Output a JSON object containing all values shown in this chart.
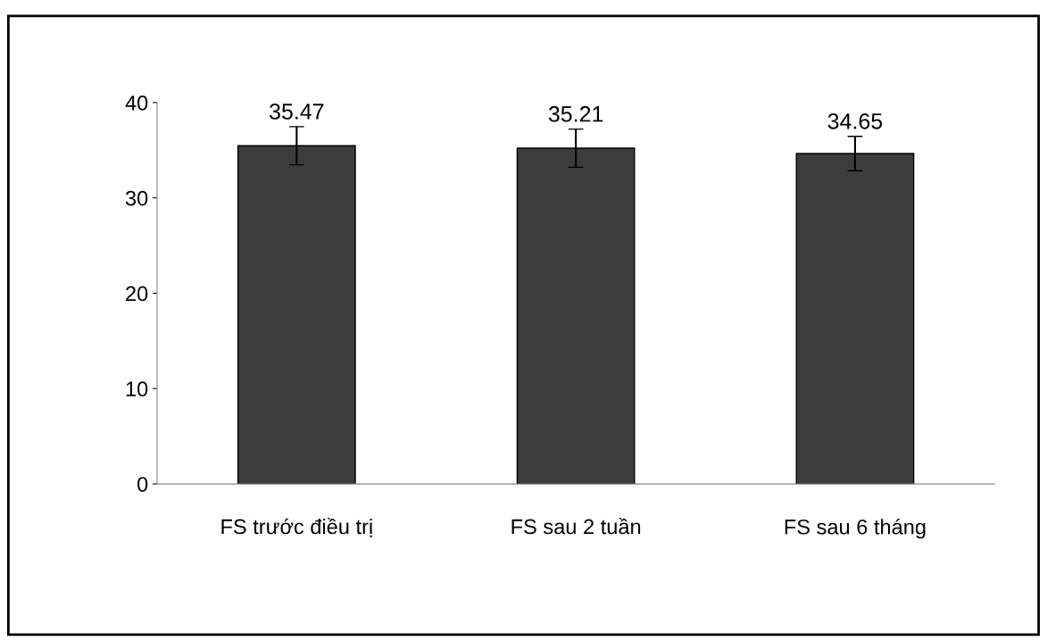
{
  "chart_data": {
    "type": "bar",
    "categories": [
      "FS trước điều trị",
      "FS sau 2 tuần",
      "FS sau 6 tháng"
    ],
    "values": [
      35.47,
      35.21,
      34.65
    ],
    "errors": [
      2.0,
      2.0,
      1.8
    ],
    "color": "#3c3c3c",
    "data_labels": true,
    "ylim": [
      0,
      40
    ],
    "yticks": [
      0,
      10,
      20,
      30,
      40
    ],
    "grid": false
  }
}
